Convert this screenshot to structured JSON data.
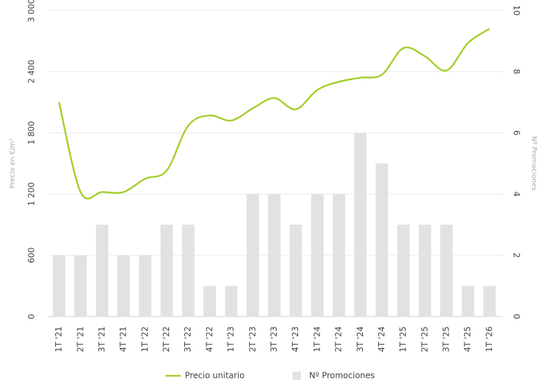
{
  "chart_data": {
    "type": "bar-line",
    "categories": [
      "1T '21",
      "2T '21",
      "3T '21",
      "4T '21",
      "1T '22",
      "2T '22",
      "3T '22",
      "4T '22",
      "1T '23",
      "2T '23",
      "3T '23",
      "4T '23",
      "1T '24",
      "2T '24",
      "3T '24",
      "4T '24",
      "1T '25",
      "2T '25",
      "3T '25",
      "4T '25",
      "1T '26"
    ],
    "series": [
      {
        "name": "Precio unitario",
        "type": "line",
        "color": "#a3cf2c",
        "axis": "y",
        "values": [
          2100,
          1220,
          1220,
          1220,
          1350,
          1430,
          1870,
          1970,
          1920,
          2040,
          2140,
          2030,
          2220,
          2300,
          2340,
          2370,
          2630,
          2550,
          2410,
          2680,
          2820
        ]
      },
      {
        "name": "Nº Promociones",
        "type": "bar",
        "color": "#e2e2e2",
        "axis": "y2",
        "values": [
          2,
          2,
          3,
          2,
          2,
          3,
          3,
          1,
          1,
          4,
          4,
          3,
          4,
          4,
          6,
          5,
          3,
          3,
          3,
          1,
          1
        ]
      }
    ],
    "ylabel": "Precio en €/m²",
    "y2label": "Nº Promociones",
    "ylim": [
      0,
      3000
    ],
    "yticks": [
      0,
      600,
      {
        "value": 1200,
        "label": "1 200"
      },
      {
        "value": 1800,
        "label": "1 800"
      },
      {
        "value": 2400,
        "label": "2 400"
      },
      {
        "value": 3000,
        "label": "3 000"
      }
    ],
    "y2lim": [
      0,
      10
    ],
    "y2ticks": [
      0,
      2,
      4,
      6,
      8,
      10
    ],
    "grid": true,
    "legend": "bottom"
  }
}
